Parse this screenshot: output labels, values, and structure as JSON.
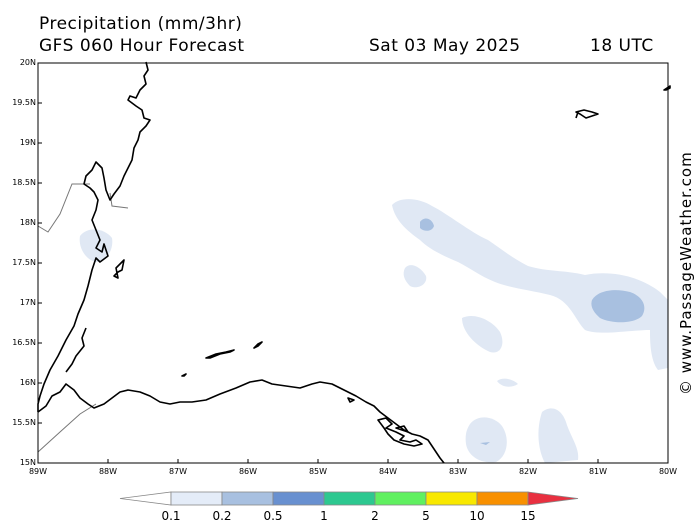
{
  "header": {
    "title": "Precipitation (mm/3hr)",
    "subtitle": "GFS 060 Hour Forecast",
    "date": "Sat 03 May 2025",
    "time": "18 UTC"
  },
  "axes": {
    "lat_labels": [
      "20N",
      "19.5N",
      "19N",
      "18.5N",
      "18N",
      "17.5N",
      "17N",
      "16.5N",
      "16N",
      "15.5N",
      "15N"
    ],
    "lon_labels": [
      "89W",
      "88W",
      "87W",
      "86W",
      "85W",
      "84W",
      "83W",
      "82W",
      "81W",
      "80W"
    ]
  },
  "credit": "© www.PassageWeather.com",
  "legend": {
    "labels": [
      "0.1",
      "0.2",
      "0.5",
      "1",
      "2",
      "5",
      "10",
      "15"
    ],
    "colors": [
      "#ffffff",
      "#e4ecf8",
      "#a8c0e0",
      "#6890d0",
      "#2dc890",
      "#60f060",
      "#f8e800",
      "#f89000",
      "#e83040"
    ]
  },
  "colors": {
    "coast": "#000000",
    "border": "#777777",
    "precip_light": "#e0e8f4",
    "precip_medium": "#a8c0e0"
  }
}
